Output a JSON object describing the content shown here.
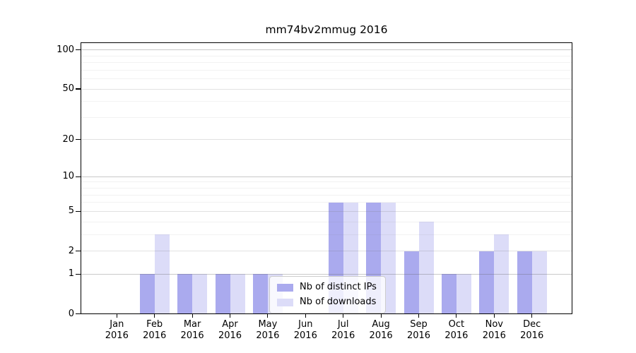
{
  "chart_data": {
    "type": "bar",
    "title": "mm74bv2mmug 2016",
    "x_year": "2016",
    "categories": [
      "Jan",
      "Feb",
      "Mar",
      "Apr",
      "May",
      "Jun",
      "Jul",
      "Aug",
      "Sep",
      "Oct",
      "Nov",
      "Dec"
    ],
    "series": [
      {
        "name": "Nb of distinct IPs",
        "color": "#aaaaee",
        "values": [
          0,
          1,
          1,
          1,
          1,
          0,
          6,
          6,
          2,
          1,
          2,
          2
        ]
      },
      {
        "name": "Nb of downloads",
        "color": "#dcdcf8",
        "values": [
          0,
          3,
          1,
          1,
          1,
          0,
          6,
          6,
          4,
          1,
          3,
          2
        ]
      }
    ],
    "yscale": "log1p",
    "ylim": [
      0,
      114
    ],
    "y_ticks": [
      0,
      1,
      2,
      5,
      10,
      20,
      50,
      100
    ],
    "minor_gridlines": [
      3,
      4,
      6,
      7,
      8,
      9,
      30,
      40,
      60,
      70,
      80,
      90
    ],
    "decade_gridlines": [
      1,
      10,
      100
    ],
    "grid": true,
    "legend_position": "inside lower-center",
    "colors": {
      "frame": "#000000",
      "gridline_decade": "rgba(100,100,100,0.35)",
      "gridline_major": "rgba(120,120,120,0.22)",
      "gridline_minor": "rgba(130,130,130,0.10)",
      "legend_border": "#cccccc"
    }
  }
}
